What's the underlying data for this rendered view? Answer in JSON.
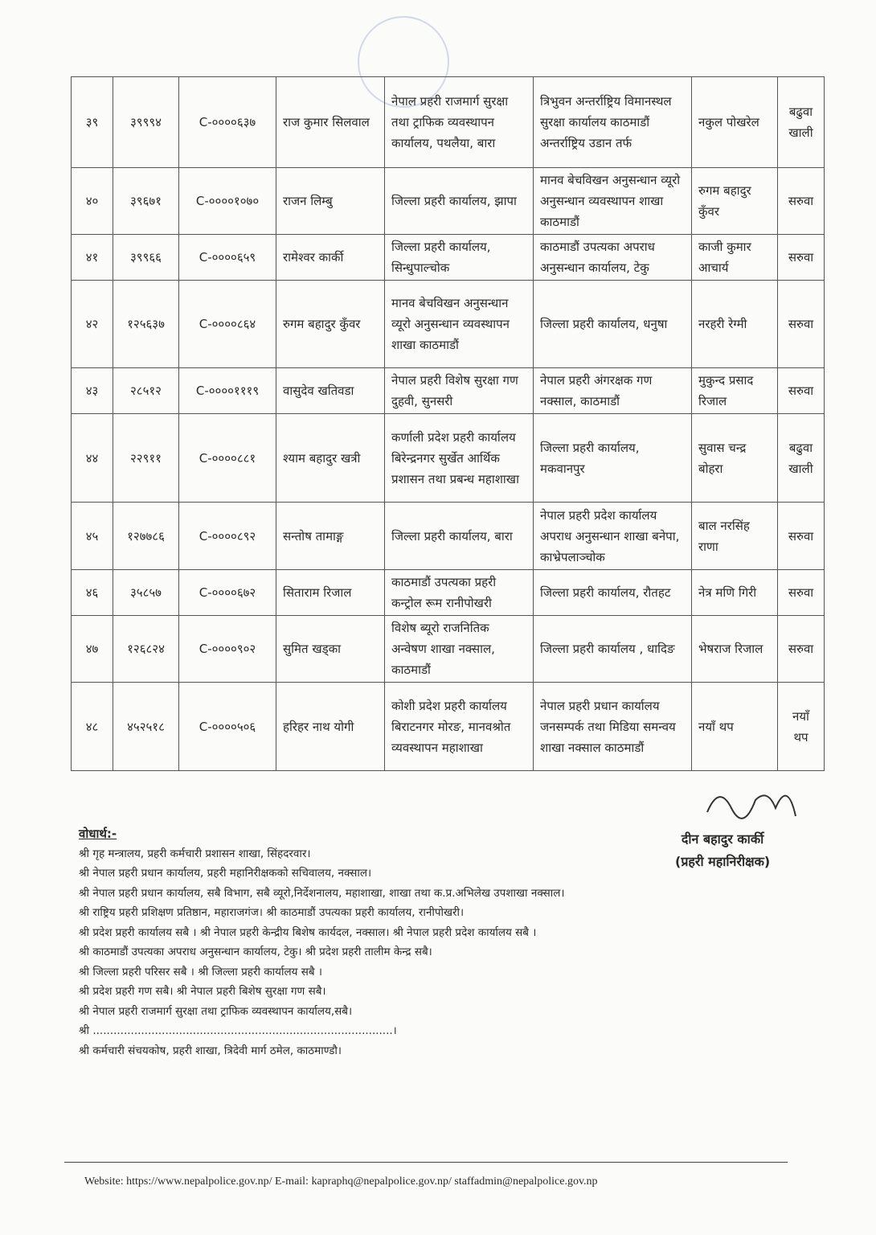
{
  "rows": [
    {
      "sn": "३९",
      "id": "३९९९४",
      "code": "C-००००६३७",
      "name": "राज कुमार सिलवाल",
      "from": "नेपाल प्रहरी राजमार्ग सुरक्षा तथा ट्राफिक व्यवस्थापन कार्यालय, पथलैया, बारा",
      "to": "त्रिभुवन अन्तर्राष्ट्रिय विमानस्थल सुरक्षा कार्यालय काठमाडौं अन्तर्राष्ट्रिय उडान तर्फ",
      "replace": "नकुल पोखरेल",
      "type": "बढुवा खाली"
    },
    {
      "sn": "४०",
      "id": "३९६७१",
      "code": "C-००००१०७०",
      "name": "राजन लिम्बु",
      "from": "जिल्ला प्रहरी कार्यालय, झापा",
      "to": "मानव बेचविखन अनुसन्धान व्यूरो अनुसन्धान व्यवस्थापन शाखा काठमाडौं",
      "replace": "रुगम बहादुर कुँवर",
      "type": "सरुवा"
    },
    {
      "sn": "४१",
      "id": "३९९६६",
      "code": "C-००००६५९",
      "name": "रामेश्वर कार्की",
      "from": "जिल्ला प्रहरी कार्यालय, सिन्धुपाल्चोक",
      "to": "काठमाडौं उपत्यका अपराध अनुसन्धान कार्यालय, टेकु",
      "replace": "काजी कुमार आचार्य",
      "type": "सरुवा"
    },
    {
      "sn": "४२",
      "id": "१२५६३७",
      "code": "C-००००८६४",
      "name": "रुगम बहादुर कुँवर",
      "from": "मानव बेचविखन अनुसन्धान व्यूरो अनुसन्धान व्यवस्थापन शाखा काठमाडौं",
      "to": "जिल्ला प्रहरी कार्यालय, धनुषा",
      "replace": "नरहरी रेग्मी",
      "type": "सरुवा"
    },
    {
      "sn": "४३",
      "id": "२८५१२",
      "code": "C-००००१११९",
      "name": "वासुदेव खतिवडा",
      "from": "नेपाल प्रहरी विशेष सुरक्षा गण दुहवी, सुनसरी",
      "to": "नेपाल प्रहरी अंगरक्षक गण नक्साल, काठमाडौं",
      "replace": "मुकुन्द प्रसाद रिजाल",
      "type": "सरुवा"
    },
    {
      "sn": "४४",
      "id": "२२९११",
      "code": "C-००००८८१",
      "name": "श्याम बहादुर खत्री",
      "from": "कर्णाली प्रदेश प्रहरी कार्यालय बिरेन्द्रनगर सुर्खेत आर्थिक प्रशासन तथा प्रबन्ध महाशाखा",
      "to": "जिल्ला प्रहरी कार्यालय, मकवानपुर",
      "replace": "सुवास चन्द्र बोहरा",
      "type": "बढुवा खाली"
    },
    {
      "sn": "४५",
      "id": "१२७७८६",
      "code": "C-००००८९२",
      "name": "सन्तोष तामाङ्ग",
      "from": "जिल्ला प्रहरी कार्यालय, बारा",
      "to": "नेपाल प्रहरी प्रदेश कार्यालय अपराध अनुसन्धान शाखा बनेपा, काभ्रेपलाञ्चोक",
      "replace": "बाल नरसिंह राणा",
      "type": "सरुवा"
    },
    {
      "sn": "४६",
      "id": "३५८५७",
      "code": "C-००००६७२",
      "name": "सिताराम रिजाल",
      "from": "काठमाडौं उपत्यका प्रहरी कन्ट्रोल रूम रानीपोखरी",
      "to": "जिल्ला प्रहरी कार्यालय, रौतहट",
      "replace": "नेत्र मणि गिरी",
      "type": "सरुवा"
    },
    {
      "sn": "४७",
      "id": "१२६८२४",
      "code": "C-००००९०२",
      "name": "सुमित खड्का",
      "from": "विशेष ब्यूरो राजनितिक अन्वेषण शाखा नक्साल, काठमाडौं",
      "to": "जिल्ला प्रहरी कार्यालय , धादिङ",
      "replace": "भेषराज रिजाल",
      "type": "सरुवा"
    },
    {
      "sn": "४८",
      "id": "४५२५१८",
      "code": "C-००००५०६",
      "name": "हरिहर नाथ योगी",
      "from": "कोशी प्रदेश प्रहरी कार्यालय बिराटनगर मोरङ, मानवश्रोत व्यवस्थापन महाशाखा",
      "to": "नेपाल प्रहरी प्रधान कार्यालय जनसम्पर्क तथा मिडिया समन्वय शाखा नक्साल काठमाडौं",
      "replace": "नयाँ थप",
      "type": "नयाँ थप"
    }
  ],
  "notes": {
    "heading": "वोधार्थ:-",
    "lines": [
      "श्री गृह मन्त्रालय, प्रहरी कर्मचारी प्रशासन शाखा, सिंहदरवार।",
      "श्री नेपाल प्रहरी प्रधान कार्यालय, प्रहरी महानिरीक्षकको सचिवालय, नक्साल।",
      "श्री नेपाल प्रहरी प्रधान कार्यालय, सबै विभाग, सबै व्यूरो,निर्देशनालय, महाशाखा, शाखा तथा क.प्र.अभिलेख उपशाखा नक्साल।",
      "श्री राष्ट्रिय प्रहरी प्रशिक्षण प्रतिष्ठान, महाराजगंज। श्री काठमाडौं उपत्यका प्रहरी कार्यालय, रानीपोखरी।",
      "श्री प्रदेश प्रहरी कार्यालय सबै । श्री नेपाल प्रहरी केन्द्रीय बिशेष कार्यदल, नक्साल। श्री नेपाल प्रहरी प्रदेश कार्यालय सबै ।",
      "श्री काठमाडौं उपत्यका अपराध अनुसन्धान कार्यालय, टेकु। श्री प्रदेश प्रहरी तालीम केन्द्र सबै।",
      "श्री जिल्ला प्रहरी परिसर सबै । श्री जिल्ला प्रहरी कार्यालय सबै ।",
      "श्री प्रदेश प्रहरी गण सबै। श्री नेपाल प्रहरी बिशेष सुरक्षा गण सबै।",
      "श्री नेपाल प्रहरी राजमार्ग सुरक्षा तथा ट्राफिक व्यवस्थापन कार्यालय,सबै।",
      "श्री .......................................................................................।",
      "श्री कर्मचारी संचयकोष, प्रहरी शाखा, त्रिदेवी मार्ग ठमेल, काठमाण्डौ।"
    ]
  },
  "signature": {
    "name": "दीन बहादुर कार्की",
    "title": "(प्रहरी महानिरीक्षक)"
  },
  "footer": "Website: https://www.nepalpolice.gov.np/ E-mail: kapraphq@nepalpolice.gov.np/ staffadmin@nepalpolice.gov.np"
}
